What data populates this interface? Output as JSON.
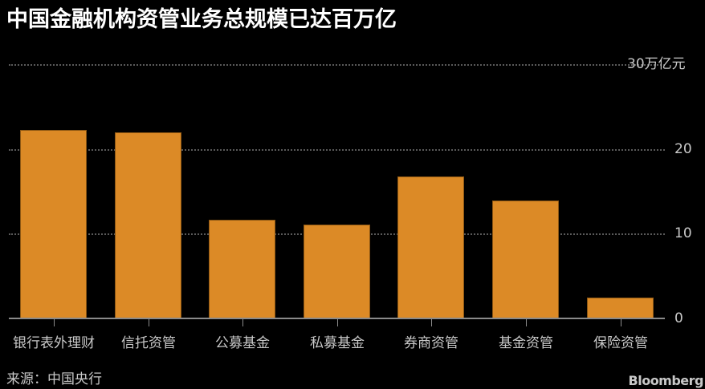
{
  "title": "中国金融机构资管业务总规模已达百万亿",
  "source": "来源：中国央行",
  "brand": "Bloomberg",
  "colors": {
    "bar": "#dc8a26",
    "background": "#000000",
    "grid": "#5a5a5a",
    "text": "#c8c8c8"
  },
  "y_axis": {
    "ticks": [
      {
        "value": 30,
        "label": "30万亿元"
      },
      {
        "value": 20,
        "label": "20"
      },
      {
        "value": 10,
        "label": "10"
      },
      {
        "value": 0,
        "label": "0"
      }
    ]
  },
  "chart_data": {
    "type": "bar",
    "title": "中国金融机构资管业务总规模已达百万亿",
    "categories": [
      "银行表外理财",
      "信托资管",
      "公募基金",
      "私募基金",
      "券商资管",
      "基金资管",
      "保险资管"
    ],
    "values": [
      22.3,
      22.0,
      11.7,
      11.1,
      16.8,
      13.9,
      2.5
    ],
    "xlabel": "",
    "ylabel": "万亿元",
    "ylim": [
      0,
      30
    ],
    "yticks": [
      0,
      10,
      20,
      30
    ],
    "grid": true,
    "legend": null,
    "source": "来源：中国央行"
  }
}
